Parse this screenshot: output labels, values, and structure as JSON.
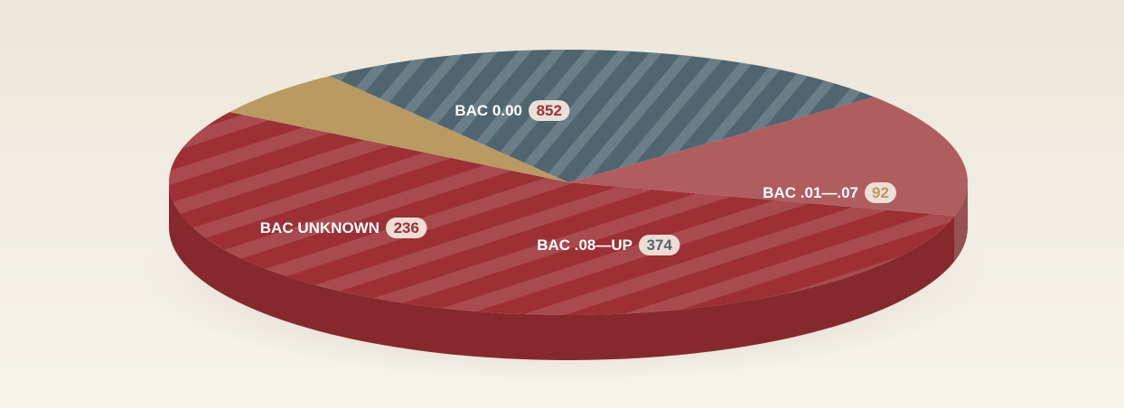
{
  "chart_data": {
    "type": "pie",
    "slices": [
      {
        "label": "BAC 0.00",
        "value": 852,
        "color": "#9c3034",
        "num_color": "#9c3034",
        "striped": true
      },
      {
        "label": "BAC .01—.07",
        "value": 92,
        "color": "#b89a62",
        "num_color": "#b89a62",
        "striped": false
      },
      {
        "label": "BAC .08—UP",
        "value": 374,
        "color": "#4f6570",
        "num_color": "#4f6570",
        "striped": true
      },
      {
        "label": "BAC UNKNOWN",
        "value": 236,
        "color": "#b05d60",
        "num_color": "#9c3034",
        "striped": false
      }
    ]
  }
}
